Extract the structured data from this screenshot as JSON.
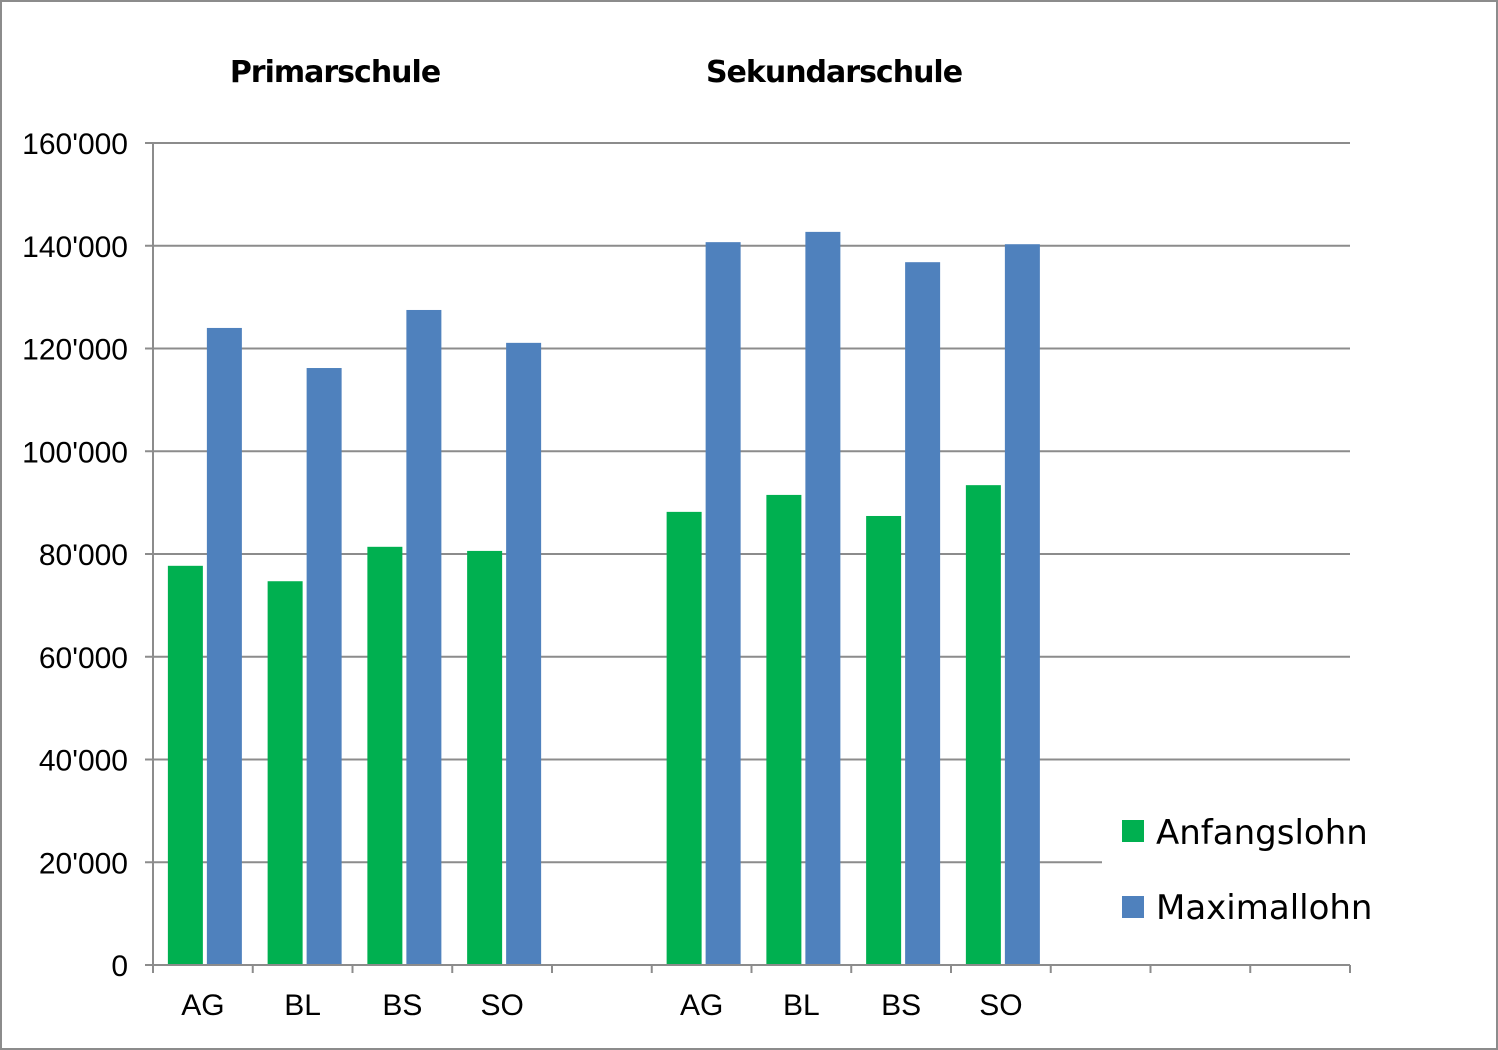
{
  "chart_data": {
    "type": "bar",
    "group_titles": [
      "Primarschule",
      "Sekundarschule"
    ],
    "categories": [
      "AG",
      "BL",
      "BS",
      "SO",
      "",
      "AG",
      "BL",
      "BS",
      "SO",
      "",
      "",
      ""
    ],
    "series": [
      {
        "name": "Anfangslohn",
        "color": "#00B050",
        "values": [
          77700,
          74700,
          81400,
          80600,
          null,
          88200,
          91500,
          87400,
          93400,
          null,
          null,
          null
        ]
      },
      {
        "name": "Maximallohn",
        "color": "#4F81BD",
        "values": [
          124000,
          116200,
          127500,
          121100,
          null,
          140700,
          142700,
          136800,
          140300,
          null,
          null,
          null
        ]
      }
    ],
    "ylim": [
      0,
      160000
    ],
    "yticks": [
      0,
      20000,
      40000,
      60000,
      80000,
      100000,
      120000,
      140000,
      160000
    ],
    "ytick_labels": [
      "0",
      "20'000",
      "40'000",
      "60'000",
      "80'000",
      "100'000",
      "120'000",
      "140'000",
      "160'000"
    ],
    "xlabel": "",
    "ylabel": "",
    "grid": true,
    "legend": "bottom-right"
  }
}
